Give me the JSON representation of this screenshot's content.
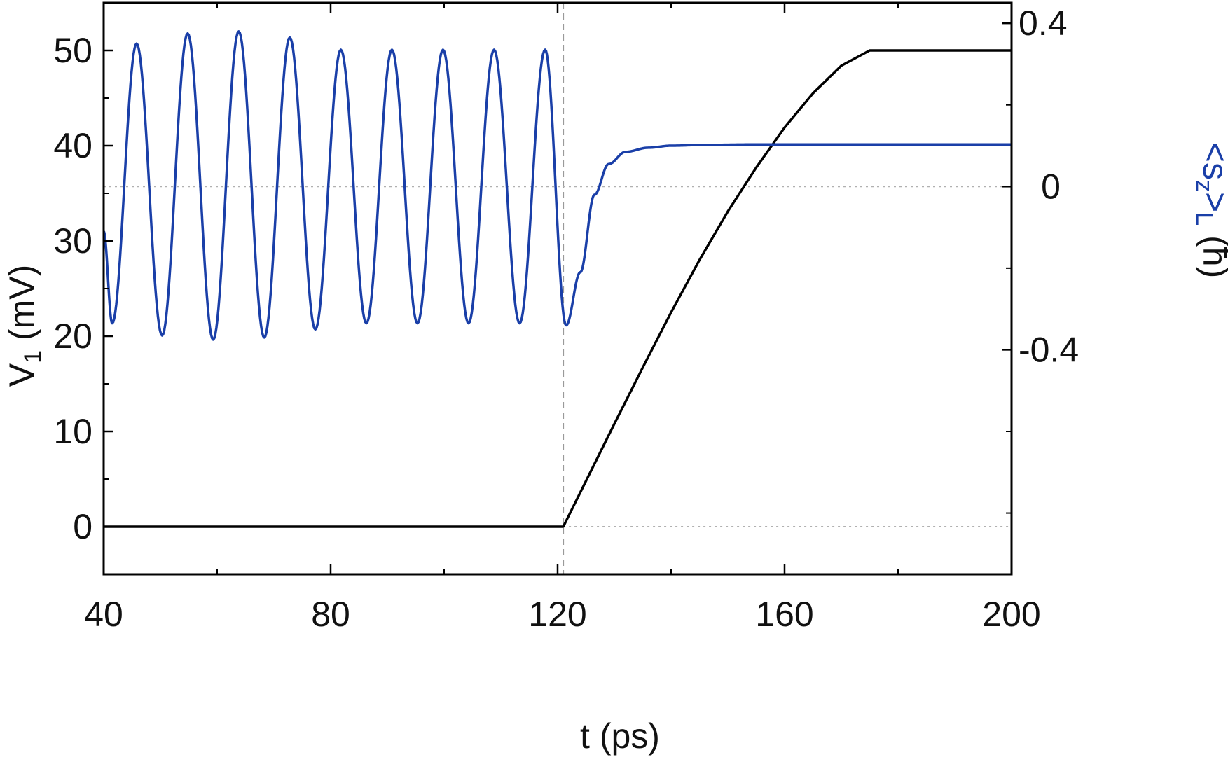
{
  "chart_data": {
    "type": "line",
    "title": "",
    "xlabel": "t (ps)",
    "ylabel_left": "V",
    "ylabel_left_sub": "1",
    "ylabel_left_unit": " (mV)",
    "ylabel_right_main": "<s",
    "ylabel_right_sub1": "z",
    "ylabel_right_mid": ">",
    "ylabel_right_sub2": "L",
    "ylabel_right_unit": "(ħ)",
    "xlim": [
      40,
      200
    ],
    "ylim_left": [
      -5,
      55
    ],
    "ylim_right": [
      -0.95,
      0.45
    ],
    "x_ticks": [
      40,
      80,
      120,
      160,
      200
    ],
    "x_tick_labels": [
      "40",
      "80",
      "120",
      "160",
      "200"
    ],
    "x_minor_ticks": [
      60,
      100,
      140,
      180
    ],
    "y_left_ticks": [
      0,
      10,
      20,
      30,
      40,
      50
    ],
    "y_left_tick_labels": [
      "0",
      "10",
      "20",
      "30",
      "40",
      "50"
    ],
    "y_left_minor_ticks": [
      -5,
      5,
      15,
      25,
      35,
      45,
      55
    ],
    "y_right_ticks": [
      -0.4,
      0,
      0.4
    ],
    "y_right_tick_labels": [
      "-0.4",
      "0",
      "0.4"
    ],
    "y_right_minor_ticks": [
      -0.8,
      -0.6,
      -0.2,
      0.2
    ],
    "grid": false,
    "reference_lines": [
      {
        "orientation": "vertical",
        "axis": "x",
        "value": 121,
        "style": "dashed"
      },
      {
        "orientation": "horizontal",
        "axis": "right",
        "value": 0,
        "style": "dotted"
      },
      {
        "orientation": "horizontal",
        "axis": "left",
        "value": 0,
        "x_from": 121,
        "style": "dotted"
      }
    ],
    "series": [
      {
        "axis": "left",
        "color": "#000000",
        "x": [
          40,
          121,
          125,
          130,
          135,
          140,
          145,
          150,
          155,
          160,
          165,
          170,
          175,
          200
        ],
        "y": [
          0,
          0,
          4.8,
          10.8,
          16.7,
          22.5,
          28.0,
          33.1,
          37.7,
          41.9,
          45.5,
          48.4,
          50,
          50
        ]
      },
      {
        "axis": "right",
        "color": "#1a3fa8",
        "x": [
          40,
          41.5,
          45.8,
          50.3,
          54.8,
          59.3,
          63.8,
          68.3,
          72.8,
          77.3,
          81.8,
          86.3,
          90.8,
          95.3,
          99.8,
          104.3,
          108.8,
          113.3,
          117.8,
          121.5,
          124,
          126.5,
          129,
          132,
          136,
          140,
          146,
          155,
          170,
          200
        ],
        "y": [
          -0.11,
          -0.335,
          0.35,
          -0.365,
          0.375,
          -0.375,
          0.38,
          -0.37,
          0.365,
          -0.35,
          0.335,
          -0.335,
          0.335,
          -0.335,
          0.335,
          -0.335,
          0.335,
          -0.335,
          0.335,
          -0.34,
          -0.21,
          -0.02,
          0.055,
          0.085,
          0.095,
          0.1,
          0.102,
          0.103,
          0.103,
          0.103
        ]
      }
    ]
  },
  "colors": {
    "left_series": "#000000",
    "right_series": "#1a3fa8",
    "right_axis_label": "#1a3fa8"
  }
}
